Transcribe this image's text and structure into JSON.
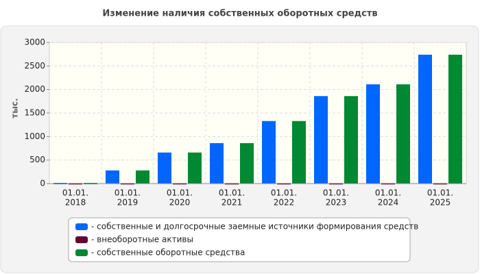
{
  "chart_data": {
    "type": "bar",
    "title": "Изменение наличия собственных оборотных средств",
    "y_label": "тыс.",
    "categories": [
      [
        "01.01.",
        "2018"
      ],
      [
        "01.01.",
        "2019"
      ],
      [
        "01.01.",
        "2020"
      ],
      [
        "01.01.",
        "2021"
      ],
      [
        "01.01.",
        "2022"
      ],
      [
        "01.01.",
        "2023"
      ],
      [
        "01.01.",
        "2024"
      ],
      [
        "01.01.",
        "2025"
      ]
    ],
    "series": [
      {
        "name": "- собственные и долгосрочные заемные источники формирования средств",
        "color": "#0066ff",
        "values": [
          15,
          280,
          660,
          860,
          1330,
          1860,
          2110,
          2740
        ]
      },
      {
        "name": "- внеоборотные активы",
        "color": "#660033",
        "values": [
          10,
          10,
          10,
          10,
          10,
          10,
          10,
          10
        ]
      },
      {
        "name": "- собственные оборотные средства",
        "color": "#008833",
        "values": [
          15,
          280,
          660,
          860,
          1330,
          1860,
          2110,
          2740
        ]
      }
    ],
    "ylim": [
      0,
      3000
    ],
    "yticks": [
      0,
      500,
      1000,
      1500,
      2000,
      2500,
      3000
    ],
    "grid": true
  }
}
